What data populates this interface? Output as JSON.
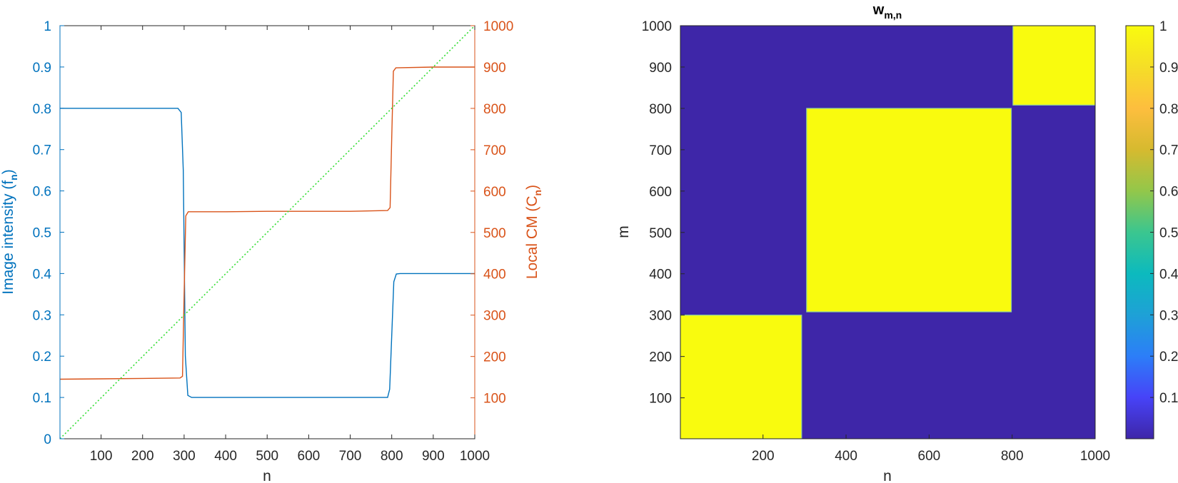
{
  "chart_data": [
    {
      "type": "line",
      "title": "",
      "xlabel": "n",
      "ylabel_left": "Image intensity (f",
      "ylabel_left_sub": "n",
      "ylabel_left_close": ")",
      "ylabel_right": "Local CM (C",
      "ylabel_right_sub": "n",
      "ylabel_right_close": ")",
      "xlim": [
        1,
        1000
      ],
      "ylim_left": [
        0,
        1
      ],
      "ylim_right": [
        1,
        1000
      ],
      "xticks": [
        100,
        200,
        300,
        400,
        500,
        600,
        700,
        800,
        900,
        1000
      ],
      "xtick_labels": [
        "100",
        "200",
        "300",
        "400",
        "500",
        "600",
        "700",
        "800",
        "900",
        "1000"
      ],
      "yticks_left": [
        0,
        0.1,
        0.2,
        0.3,
        0.4,
        0.5,
        0.6,
        0.7,
        0.8,
        0.9,
        1
      ],
      "ytick_labels_left": [
        "0",
        "0.1",
        "0.2",
        "0.3",
        "0.4",
        "0.5",
        "0.6",
        "0.7",
        "0.8",
        "0.9",
        "1"
      ],
      "yticks_right": [
        100,
        200,
        300,
        400,
        500,
        600,
        700,
        800,
        900,
        1000
      ],
      "ytick_labels_right": [
        "100",
        "200",
        "300",
        "400",
        "500",
        "600",
        "700",
        "800",
        "900",
        "1000"
      ],
      "grid": false,
      "colors": {
        "left_axis": "#0072BD",
        "right_axis": "#D95319",
        "diagonal": "#33DD33",
        "axis": "#262626"
      },
      "series": [
        {
          "axis": "left",
          "color": "#0072BD",
          "x": [
            1,
            285,
            293,
            298,
            303,
            309,
            318,
            400,
            500,
            600,
            700,
            790,
            795,
            800,
            805,
            811,
            820,
            900,
            1000
          ],
          "y": [
            0.8,
            0.8,
            0.79,
            0.65,
            0.2,
            0.105,
            0.1,
            0.1,
            0.1,
            0.1,
            0.1,
            0.1,
            0.12,
            0.25,
            0.38,
            0.399,
            0.4,
            0.4,
            0.4
          ]
        },
        {
          "axis": "right",
          "color": "#D95319",
          "x": [
            1,
            100,
            200,
            290,
            296,
            300,
            304,
            310,
            400,
            500,
            600,
            700,
            790,
            796,
            800,
            804,
            810,
            900,
            1000
          ],
          "y": [
            145,
            146,
            147,
            148,
            152,
            350,
            540,
            550,
            550,
            551,
            551,
            551,
            553,
            560,
            730,
            890,
            898,
            900,
            900
          ]
        },
        {
          "axis": "right",
          "color": "#33DD33",
          "style": "dotted",
          "x": [
            1,
            1000
          ],
          "y": [
            1,
            1000
          ]
        }
      ]
    },
    {
      "type": "heatmap",
      "title": "w",
      "title_sub": "m,n",
      "xlabel": "n",
      "ylabel": "m",
      "xlim": [
        1,
        1000
      ],
      "ylim": [
        1,
        1000
      ],
      "xticks": [
        200,
        400,
        600,
        800,
        1000
      ],
      "xtick_labels": [
        "200",
        "400",
        "600",
        "800",
        "1000"
      ],
      "yticks": [
        100,
        200,
        300,
        400,
        500,
        600,
        700,
        800,
        900,
        1000
      ],
      "ytick_labels": [
        "100",
        "200",
        "300",
        "400",
        "500",
        "600",
        "700",
        "800",
        "900",
        "1000"
      ],
      "background_value": 0,
      "blocks": [
        {
          "x": [
            1,
            293
          ],
          "y": [
            1,
            300
          ],
          "value": 1
        },
        {
          "x": [
            305,
            798
          ],
          "y": [
            308,
            800
          ],
          "value": 1
        },
        {
          "x": [
            802,
            1000
          ],
          "y": [
            808,
            1000
          ],
          "value": 1
        }
      ],
      "colorbar": {
        "range": [
          0,
          1
        ],
        "ticks": [
          0.1,
          0.2,
          0.3,
          0.4,
          0.5,
          0.6,
          0.7,
          0.8,
          0.9,
          1
        ],
        "tick_labels": [
          "0.1",
          "0.2",
          "0.3",
          "0.4",
          "0.5",
          "0.6",
          "0.7",
          "0.8",
          "0.9",
          "1"
        ],
        "colormap": [
          "#3E26A8",
          "#4743F8",
          "#2C7EF8",
          "#1EA1D6",
          "#0CBABE",
          "#3BC68F",
          "#93C74A",
          "#D6BA2F",
          "#FDBE3E",
          "#F5DE27",
          "#F9FB0E"
        ]
      }
    }
  ]
}
